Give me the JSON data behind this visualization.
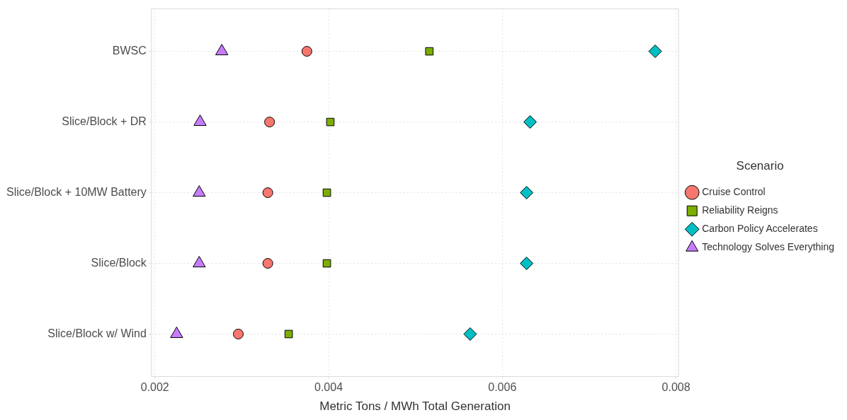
{
  "chart_data": {
    "type": "scatter",
    "orientation": "horizontal",
    "xlabel": "Metric Tons / MWh Total Generation",
    "legend_title": "Scenario",
    "legend": "right",
    "grid": true,
    "line_style": "dotted",
    "categories": [
      "BWSC",
      "Slice/Block + DR",
      "Slice/Block + 10MW Battery",
      "Slice/Block",
      "Slice/Block w/ Wind"
    ],
    "xlim": [
      0.00196,
      0.00803
    ],
    "xticks": [
      0.002,
      0.004,
      0.006,
      0.008
    ],
    "series": [
      {
        "name": "Cruise Control",
        "color": "#f8766d",
        "marker": "circle",
        "values": [
          0.00375,
          0.00332,
          0.0033,
          0.0033,
          0.00296
        ]
      },
      {
        "name": "Reliability Reigns",
        "color": "#7cae00",
        "marker": "square",
        "values": [
          0.00516,
          0.00402,
          0.00398,
          0.00398,
          0.00354
        ]
      },
      {
        "name": "Carbon Policy Accelerates",
        "color": "#00bfc4",
        "marker": "diamond",
        "values": [
          0.00776,
          0.00632,
          0.00628,
          0.00628,
          0.00563
        ]
      },
      {
        "name": "Technology Solves Everything",
        "color": "#c77cff",
        "marker": "triangle",
        "values": [
          0.00277,
          0.00252,
          0.00251,
          0.00251,
          0.00225
        ]
      }
    ]
  }
}
